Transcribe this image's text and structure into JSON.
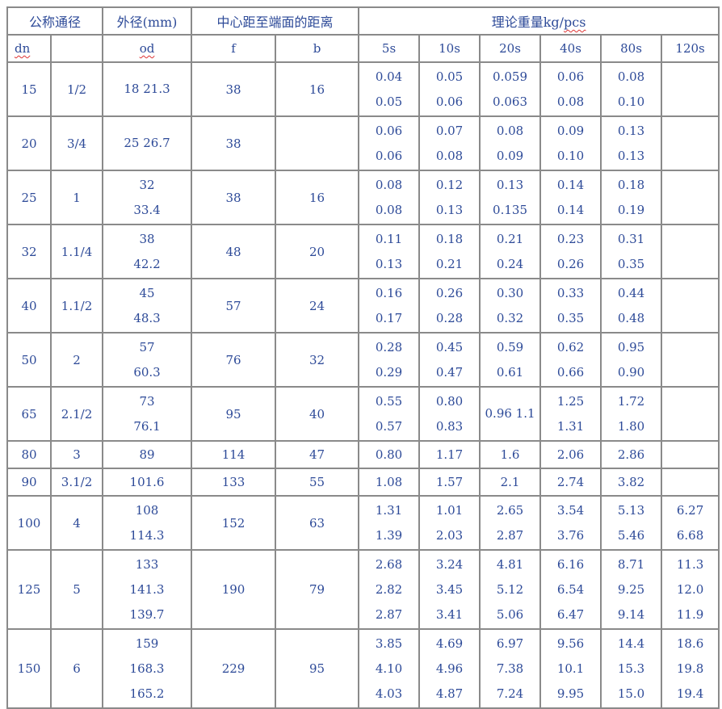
{
  "header": {
    "nominal": "公称通径",
    "od": "外径(mm)",
    "center": "中心距至端面的距离",
    "weight_prefix": "理论重量kg/",
    "weight_unit": "pcs",
    "dn": "dn",
    "od_sub": "od",
    "f": "f",
    "b": "b",
    "schedules": [
      "5s",
      "10s",
      "20s",
      "40s",
      "80s",
      "120s"
    ]
  },
  "rows": [
    {
      "dn": "15",
      "nps": "1/2",
      "od": [
        "18 21.3"
      ],
      "f": "38",
      "b": "16",
      "w": [
        [
          "0.04",
          "0.05"
        ],
        [
          "0.05",
          "0.06"
        ],
        [
          "0.059",
          "0.063"
        ],
        [
          "0.06",
          "0.08"
        ],
        [
          "0.08",
          "0.10"
        ],
        []
      ]
    },
    {
      "dn": "20",
      "nps": "3/4",
      "od": [
        "25 26.7"
      ],
      "f": "38",
      "b": "",
      "w": [
        [
          "0.06",
          "0.06"
        ],
        [
          "0.07",
          "0.08"
        ],
        [
          "0.08",
          "0.09"
        ],
        [
          "0.09",
          "0.10"
        ],
        [
          "0.13",
          "0.13"
        ],
        []
      ]
    },
    {
      "dn": "25",
      "nps": "1",
      "od": [
        "32",
        "33.4"
      ],
      "f": "38",
      "b": "16",
      "w": [
        [
          "0.08",
          "0.08"
        ],
        [
          "0.12",
          "0.13"
        ],
        [
          "0.13",
          "0.135"
        ],
        [
          "0.14",
          "0.14"
        ],
        [
          "0.18",
          "0.19"
        ],
        []
      ]
    },
    {
      "dn": "32",
      "nps": "1.1/4",
      "od": [
        "38",
        "42.2"
      ],
      "f": "48",
      "b": "20",
      "w": [
        [
          "0.11",
          "0.13"
        ],
        [
          "0.18",
          "0.21"
        ],
        [
          "0.21",
          "0.24"
        ],
        [
          "0.23",
          "0.26"
        ],
        [
          "0.31",
          "0.35"
        ],
        []
      ]
    },
    {
      "dn": "40",
      "nps": "1.1/2",
      "od": [
        "45",
        "48.3"
      ],
      "f": "57",
      "b": "24",
      "w": [
        [
          "0.16",
          "0.17"
        ],
        [
          "0.26",
          "0.28"
        ],
        [
          "0.30",
          "0.32"
        ],
        [
          "0.33",
          "0.35"
        ],
        [
          "0.44",
          "0.48"
        ],
        []
      ]
    },
    {
      "dn": "50",
      "nps": "2",
      "od": [
        "57",
        "60.3"
      ],
      "f": "76",
      "b": "32",
      "w": [
        [
          "0.28",
          "0.29"
        ],
        [
          "0.45",
          "0.47"
        ],
        [
          "0.59",
          "0.61"
        ],
        [
          "0.62",
          "0.66"
        ],
        [
          "0.95",
          "0.90"
        ],
        []
      ]
    },
    {
      "dn": "65",
      "nps": "2.1/2",
      "od": [
        "73",
        "76.1"
      ],
      "f": "95",
      "b": "40",
      "w": [
        [
          "0.55",
          "0.57"
        ],
        [
          "0.80",
          "0.83"
        ],
        [
          "0.96 1.1"
        ],
        [
          "1.25",
          "1.31"
        ],
        [
          "1.72",
          "1.80"
        ],
        []
      ]
    },
    {
      "dn": "80",
      "nps": "3",
      "od": [
        "89"
      ],
      "f": "114",
      "b": "47",
      "w": [
        [
          "0.80"
        ],
        [
          "1.17"
        ],
        [
          "1.6"
        ],
        [
          "2.06"
        ],
        [
          "2.86"
        ],
        []
      ]
    },
    {
      "dn": "90",
      "nps": "3.1/2",
      "od": [
        "101.6"
      ],
      "f": "133",
      "b": "55",
      "w": [
        [
          "1.08"
        ],
        [
          "1.57"
        ],
        [
          "2.1"
        ],
        [
          "2.74"
        ],
        [
          "3.82"
        ],
        []
      ]
    },
    {
      "dn": "100",
      "nps": "4",
      "od": [
        "108",
        "114.3"
      ],
      "f": "152",
      "b": "63",
      "w": [
        [
          "1.31",
          "1.39"
        ],
        [
          "1.01",
          "2.03"
        ],
        [
          "2.65",
          "2.87"
        ],
        [
          "3.54",
          "3.76"
        ],
        [
          "5.13",
          "5.46"
        ],
        [
          "6.27",
          "6.68"
        ]
      ]
    },
    {
      "dn": "125",
      "nps": "5",
      "od": [
        "133",
        "141.3",
        "139.7"
      ],
      "f": "190",
      "b": "79",
      "w": [
        [
          "2.68",
          "2.82",
          "2.87"
        ],
        [
          "3.24",
          "3.45",
          "3.41"
        ],
        [
          "4.81",
          "5.12",
          "5.06"
        ],
        [
          "6.16",
          "6.54",
          "6.47"
        ],
        [
          "8.71",
          "9.25",
          "9.14"
        ],
        [
          "11.3",
          "12.0",
          "11.9"
        ]
      ]
    },
    {
      "dn": "150",
      "nps": "6",
      "od": [
        "159",
        "168.3",
        "165.2"
      ],
      "f": "229",
      "b": "95",
      "w": [
        [
          "3.85",
          "4.10",
          "4.03"
        ],
        [
          "4.69",
          "4.96",
          "4.87"
        ],
        [
          "6.97",
          "7.38",
          "7.24"
        ],
        [
          "9.56",
          "10.1",
          "9.95"
        ],
        [
          "14.4",
          "15.3",
          "15.0"
        ],
        [
          "18.6",
          "19.8",
          "19.4"
        ]
      ]
    }
  ],
  "colors": {
    "text": "#2d4a98",
    "border": "#8a8a8a",
    "spellcheck": "#dd3333"
  }
}
